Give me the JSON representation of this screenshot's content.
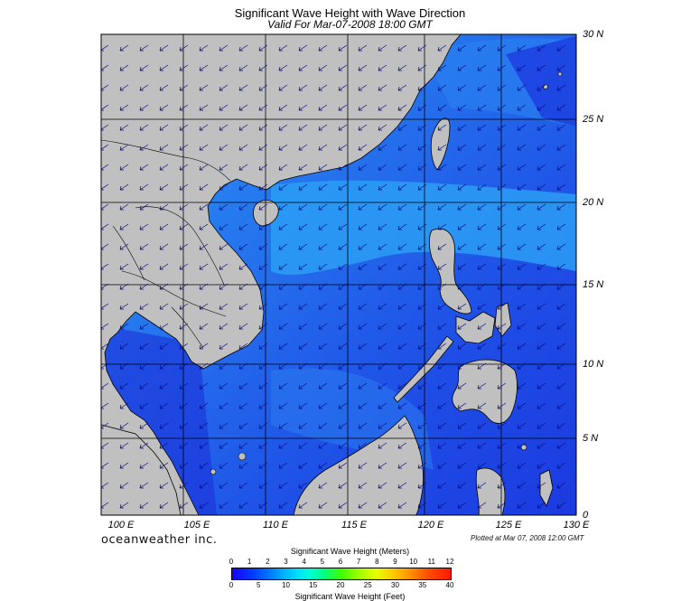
{
  "title": "Significant Wave Height with Wave Direction",
  "subtitle": "Valid For Mar-07-2008 18:00 GMT",
  "lat_labels": [
    "30 N",
    "25 N",
    "20 N",
    "15 N",
    "10 N",
    "5 N",
    "0"
  ],
  "lon_labels": [
    "100 E",
    "105 E",
    "110 E",
    "115 E",
    "120 E",
    "125 E",
    "130 E"
  ],
  "brand": "oceanweather inc.",
  "plotted": "Plotted at Mar 07, 2008 12:00 GMT",
  "colorbar": {
    "title_meters": "Significant Wave Height (Meters)",
    "title_feet": "Significant Wave Height (Feet)",
    "meter_ticks": [
      "0",
      "1",
      "2",
      "3",
      "4",
      "5",
      "6",
      "7",
      "8",
      "9",
      "10",
      "11",
      "12"
    ],
    "feet_ticks": [
      "0",
      "5",
      "10",
      "15",
      "20",
      "25",
      "30",
      "35",
      "40"
    ]
  },
  "colors": {
    "land": "#c0c0c0",
    "ocean_dark": "#1c2ee8",
    "ocean_mid": "#2a66f0",
    "ocean_light": "#2ca0f6",
    "arrow": "#0a0a80"
  },
  "wave_direction": "from northeast"
}
